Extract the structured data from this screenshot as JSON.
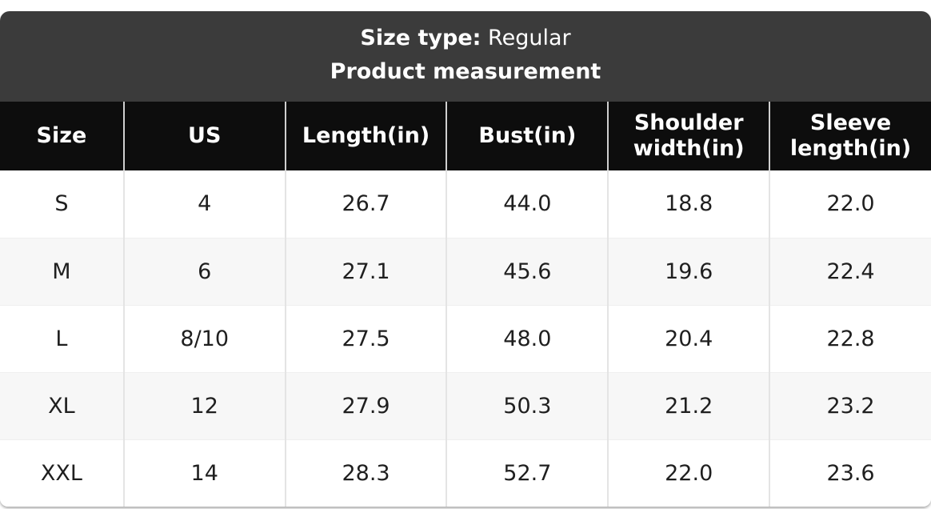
{
  "header": {
    "size_type_label": "Size type:",
    "size_type_value": "Regular",
    "title": "Product measurement"
  },
  "chart_data": {
    "type": "table",
    "title": "Product measurement",
    "size_type": "Regular",
    "units": "inches",
    "columns": [
      "Size",
      "US",
      "Length(in)",
      "Bust(in)",
      "Shoulder width(in)",
      "Sleeve length(in)"
    ],
    "rows": [
      [
        "S",
        "4",
        "26.7",
        "44.0",
        "18.8",
        "22.0"
      ],
      [
        "M",
        "6",
        "27.1",
        "45.6",
        "19.6",
        "22.4"
      ],
      [
        "L",
        "8/10",
        "27.5",
        "48.0",
        "20.4",
        "22.8"
      ],
      [
        "XL",
        "12",
        "27.9",
        "50.3",
        "21.2",
        "23.2"
      ],
      [
        "XXL",
        "14",
        "28.3",
        "52.7",
        "22.0",
        "23.6"
      ]
    ]
  },
  "colors": {
    "panel_header_bg": "#3b3b3b",
    "table_header_bg": "#0d0d0d",
    "row_bg": "#ffffff",
    "row_alt_bg": "#f7f7f7",
    "divider": "#e4e4e4",
    "text": "#1f1f1f",
    "header_text": "#ffffff"
  }
}
